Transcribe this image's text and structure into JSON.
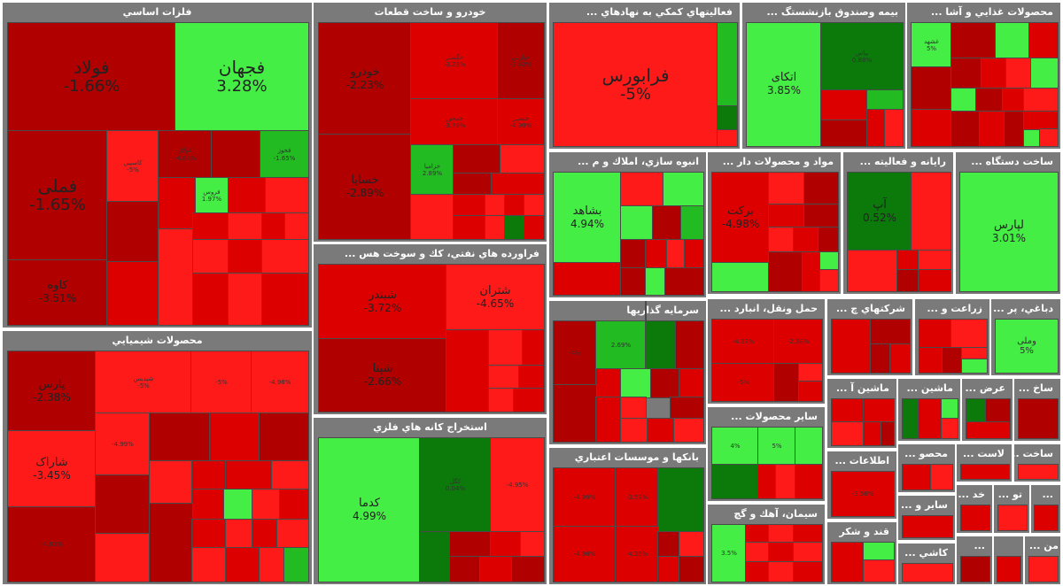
{
  "colors": {
    "header": "#7a7a7a",
    "dark_red": "#b00000",
    "red": "#dd0000",
    "bright_red": "#ff1a1a",
    "green": "#44ee44",
    "dark_green": "#0b7a0b"
  },
  "sectors": {
    "s1": {
      "title": "فلزات اساسي",
      "tiles": [
        {
          "symbol": "فولاد",
          "change": "-1.66%"
        },
        {
          "symbol": "فجهان",
          "change": "3.28%"
        },
        {
          "symbol": "فملی",
          "change": "-1.65%"
        },
        {
          "symbol": "کاوه",
          "change": "-3.51%"
        },
        {
          "symbol": "کاسپین",
          "change": "-5%"
        },
        {
          "symbol": "فولاژ",
          "change": "-4.88%"
        },
        {
          "symbol": "فروس",
          "change": "1.97%"
        },
        {
          "symbol": "فخوز",
          "change": "-1.65%"
        },
        {
          "symbol": "",
          "change": ""
        },
        {
          "symbol": "",
          "change": ""
        },
        {
          "symbol": "",
          "change": ""
        },
        {
          "symbol": "",
          "change": ""
        },
        {
          "symbol": "",
          "change": ""
        },
        {
          "symbol": "",
          "change": ""
        },
        {
          "symbol": "",
          "change": ""
        }
      ]
    },
    "s2": {
      "title": "خودرو و ساخت قطعات",
      "tiles": [
        {
          "symbol": "خودرو",
          "change": "-2.23%"
        },
        {
          "symbol": "خگستر",
          "change": "-3.23%"
        },
        {
          "symbol": "خپارس",
          "change": "-3.42%"
        },
        {
          "symbol": "خساپا",
          "change": "-2.89%"
        },
        {
          "symbol": "خمحور",
          "change": "-3.79%"
        },
        {
          "symbol": "خنصیر",
          "change": "-4.99%"
        },
        {
          "symbol": "خزامیا",
          "change": "2.89%"
        },
        {
          "symbol": "",
          "change": ""
        },
        {
          "symbol": "",
          "change": ""
        },
        {
          "symbol": "",
          "change": ""
        },
        {
          "symbol": "",
          "change": ""
        }
      ]
    },
    "s3": {
      "title": "فعاليتهاي كمكي به نهادهاي ...",
      "tiles": [
        {
          "symbol": "فرابورس",
          "change": "-5%"
        },
        {
          "symbol": "",
          "change": ""
        },
        {
          "symbol": "",
          "change": ""
        }
      ]
    },
    "s4": {
      "title": "بيمه وصندوق بازنشستگ ...",
      "tiles": [
        {
          "symbol": "اتکای",
          "change": "3.85%"
        },
        {
          "symbol": "بپاس",
          "change": "0.88%"
        },
        {
          "symbol": "",
          "change": ""
        },
        {
          "symbol": "",
          "change": ""
        }
      ]
    },
    "s5": {
      "title": "محصولات غذايي و آشا ...",
      "tiles": [
        {
          "symbol": "غشهد",
          "change": "5%"
        },
        {
          "symbol": "",
          "change": ""
        },
        {
          "symbol": "",
          "change": ""
        },
        {
          "symbol": "",
          "change": ""
        },
        {
          "symbol": "",
          "change": ""
        },
        {
          "symbol": "",
          "change": ""
        }
      ]
    },
    "s6": {
      "title": "انبوه سازي، املاك و م ...",
      "tiles": [
        {
          "symbol": "بشاهد",
          "change": "4.94%"
        },
        {
          "symbol": "",
          "change": ""
        },
        {
          "symbol": "",
          "change": ""
        },
        {
          "symbol": "",
          "change": ""
        },
        {
          "symbol": "",
          "change": ""
        }
      ]
    },
    "s7": {
      "title": "مواد و محصولات دار ...",
      "tiles": [
        {
          "symbol": "برکت",
          "change": "-4.98%"
        },
        {
          "symbol": "",
          "change": ""
        },
        {
          "symbol": "",
          "change": ""
        },
        {
          "symbol": "",
          "change": ""
        }
      ]
    },
    "s8": {
      "title": "رايانه و فعاليته ...",
      "tiles": [
        {
          "symbol": "آپ",
          "change": "0.52%"
        },
        {
          "symbol": "",
          "change": ""
        },
        {
          "symbol": "",
          "change": ""
        }
      ]
    },
    "s9": {
      "title": "ساخت دستگاه ...",
      "tiles": [
        {
          "symbol": "لپارس",
          "change": "3.01%"
        }
      ]
    },
    "s10": {
      "title": "فراورده هاي نفتي، كك و سوخت هس ...",
      "tiles": [
        {
          "symbol": "شبندر",
          "change": "-3.72%"
        },
        {
          "symbol": "شتران",
          "change": "-4.65%"
        },
        {
          "symbol": "شپنا",
          "change": "-2.66%"
        },
        {
          "symbol": "",
          "change": ""
        },
        {
          "symbol": "",
          "change": ""
        }
      ]
    },
    "s11": {
      "title": "محصولات شيميايي",
      "tiles": [
        {
          "symbol": "پارس",
          "change": "-2.38%"
        },
        {
          "symbol": "شپدیس",
          "change": "-5%"
        },
        {
          "symbol": "",
          "change": "-5%"
        },
        {
          "symbol": "",
          "change": "-4.98%"
        },
        {
          "symbol": "شاراک",
          "change": "-3.45%"
        },
        {
          "symbol": "",
          "change": "-4.99%"
        },
        {
          "symbol": "",
          "change": "-4.91%"
        },
        {
          "symbol": "",
          "change": ""
        },
        {
          "symbol": "",
          "change": ""
        },
        {
          "symbol": "",
          "change": ""
        },
        {
          "symbol": "",
          "change": ""
        }
      ]
    },
    "s12": {
      "title": "سرمايه گذاريها",
      "tiles": [
        {
          "symbol": "",
          "change": "-4%"
        },
        {
          "symbol": "",
          "change": "2.69%"
        },
        {
          "symbol": "",
          "change": ""
        },
        {
          "symbol": "",
          "change": ""
        },
        {
          "symbol": "",
          "change": ""
        }
      ]
    },
    "s13": {
      "title": "استخراج كانه هاي فلزي",
      "tiles": [
        {
          "symbol": "کدما",
          "change": "4.99%"
        },
        {
          "symbol": "کگل",
          "change": "0.04%"
        },
        {
          "symbol": "",
          "change": "-4.95%"
        },
        {
          "symbol": "",
          "change": ""
        }
      ]
    },
    "s14": {
      "title": "بانكها و موسسات اعتباري",
      "tiles": [
        {
          "symbol": "",
          "change": "-4.99%"
        },
        {
          "symbol": "",
          "change": "-3.57%"
        },
        {
          "symbol": "",
          "change": "-4.98%"
        },
        {
          "symbol": "",
          "change": "-4.25%"
        },
        {
          "symbol": "",
          "change": ""
        }
      ]
    },
    "s15": {
      "title": "حمل ونقل، انبارد ...",
      "tiles": [
        {
          "symbol": "",
          "change": "-4.37%"
        },
        {
          "symbol": "",
          "change": "-2.38%"
        },
        {
          "symbol": "",
          "change": "-5%"
        },
        {
          "symbol": "",
          "change": ""
        }
      ]
    },
    "s16": {
      "title": "ساير محصولات ...",
      "tiles": [
        {
          "symbol": "",
          "change": "4%"
        },
        {
          "symbol": "",
          "change": "5%"
        },
        {
          "symbol": "",
          "change": ""
        },
        {
          "symbol": "",
          "change": ""
        }
      ]
    },
    "s17": {
      "title": "سيمان، آهك و گچ",
      "tiles": [
        {
          "symbol": "",
          "change": "3.5%"
        },
        {
          "symbol": "",
          "change": ""
        },
        {
          "symbol": "",
          "change": ""
        }
      ]
    },
    "s18": {
      "title": "شركتهاي چ ...",
      "tiles": [
        {
          "symbol": "",
          "change": ""
        },
        {
          "symbol": "",
          "change": ""
        }
      ]
    },
    "s19": {
      "title": "زراعت و ...",
      "tiles": [
        {
          "symbol": "",
          "change": ""
        },
        {
          "symbol": "",
          "change": ""
        }
      ]
    },
    "s20": {
      "title": "دباغي، پر ...",
      "tiles": [
        {
          "symbol": "وملی",
          "change": "5%"
        }
      ]
    },
    "s21": {
      "title": "ماشين آ ...",
      "tiles": [
        {
          "symbol": "",
          "change": ""
        },
        {
          "symbol": "",
          "change": ""
        }
      ]
    },
    "s22": {
      "title": "ماشين ...",
      "tiles": [
        {
          "symbol": "",
          "change": ""
        },
        {
          "symbol": "",
          "change": ""
        }
      ]
    },
    "s23": {
      "title": "عرض ...",
      "tiles": [
        {
          "symbol": "",
          "change": ""
        }
      ]
    },
    "s24": {
      "title": "ساخ ...",
      "tiles": [
        {
          "symbol": "",
          "change": ""
        }
      ]
    },
    "s25": {
      "title": "اطلاعات ...",
      "tiles": [
        {
          "symbol": "",
          "change": "-3.56%"
        }
      ]
    },
    "s26": {
      "title": "محصو ...",
      "tiles": [
        {
          "symbol": "",
          "change": ""
        }
      ]
    },
    "s27": {
      "title": "لاست ...",
      "tiles": [
        {
          "symbol": "",
          "change": ""
        }
      ]
    },
    "s28": {
      "title": "ساخت ...",
      "tiles": [
        {
          "symbol": "",
          "change": ""
        }
      ]
    },
    "s29": {
      "title": "ساير و ...",
      "tiles": [
        {
          "symbol": "",
          "change": ""
        }
      ]
    },
    "s30": {
      "title": "خد ...",
      "tiles": [
        {
          "symbol": "",
          "change": ""
        }
      ]
    },
    "s31": {
      "title": "تو ...",
      "tiles": [
        {
          "symbol": "",
          "change": ""
        }
      ]
    },
    "s32": {
      "title": "قند و شكر",
      "tiles": [
        {
          "symbol": "",
          "change": ""
        },
        {
          "symbol": "",
          "change": ""
        }
      ]
    },
    "s33": {
      "title": "كاشي ...",
      "tiles": [
        {
          "symbol": "",
          "change": ""
        }
      ]
    },
    "s34": {
      "title": "...",
      "tiles": [
        {
          "symbol": "",
          "change": ""
        }
      ]
    },
    "s35": {
      "title": "...",
      "tiles": [
        {
          "symbol": "",
          "change": ""
        }
      ]
    },
    "s36": {
      "title": "من ...",
      "tiles": [
        {
          "symbol": "",
          "change": ""
        }
      ]
    }
  }
}
